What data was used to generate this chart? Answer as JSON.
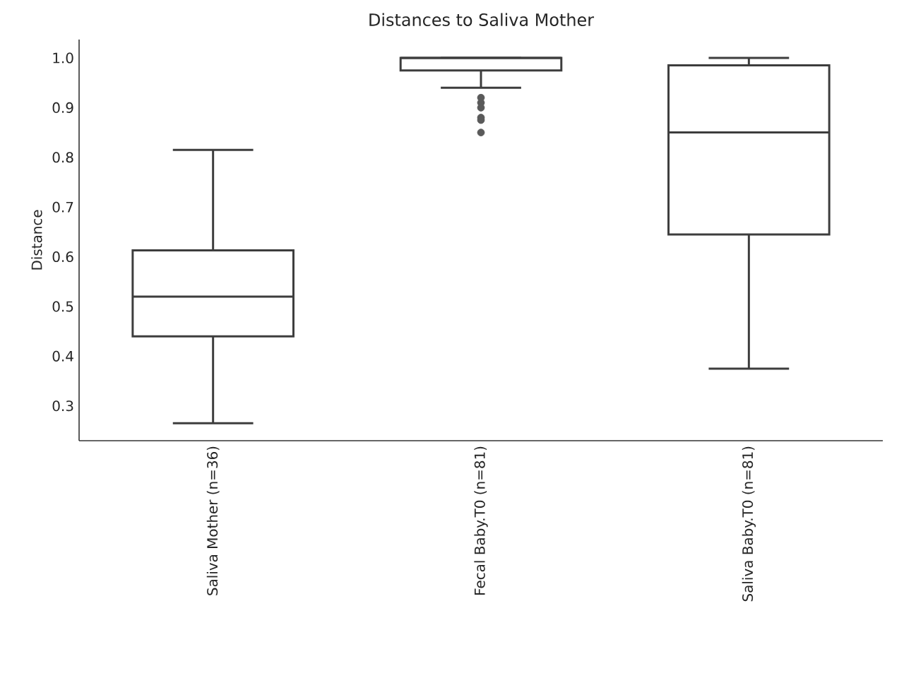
{
  "chart_data": {
    "type": "box",
    "title": "Distances to Saliva Mother",
    "ylabel": "Distance",
    "categories": [
      "Saliva Mother (n=36)",
      "Fecal Baby.T0 (n=81)",
      "Saliva Baby.T0 (n=81)"
    ],
    "boxes": [
      {
        "low": 0.265,
        "q1": 0.44,
        "median": 0.52,
        "q3": 0.613,
        "high": 0.815
      },
      {
        "low": 0.94,
        "q1": 0.975,
        "median": 1.0,
        "q3": 1.0,
        "high": 1.0,
        "outliers": [
          0.92,
          0.91,
          0.9,
          0.88,
          0.875,
          0.85
        ]
      },
      {
        "low": 0.375,
        "q1": 0.645,
        "median": 0.85,
        "q3": 0.985,
        "high": 1.0
      }
    ],
    "color": "#3d3d3d",
    "ylim": [
      0.23,
      1.037
    ],
    "yticks": [
      {
        "value": 0.3,
        "label": "0.3"
      },
      {
        "value": 0.4,
        "label": "0.4"
      },
      {
        "value": 0.5,
        "label": "0.5"
      },
      {
        "value": 0.6,
        "label": "0.6"
      },
      {
        "value": 0.7,
        "label": "0.7"
      },
      {
        "value": 0.8,
        "label": "0.8"
      },
      {
        "value": 0.9,
        "label": "0.9"
      },
      {
        "value": 1.0,
        "label": "1.0"
      }
    ],
    "grid": false
  }
}
